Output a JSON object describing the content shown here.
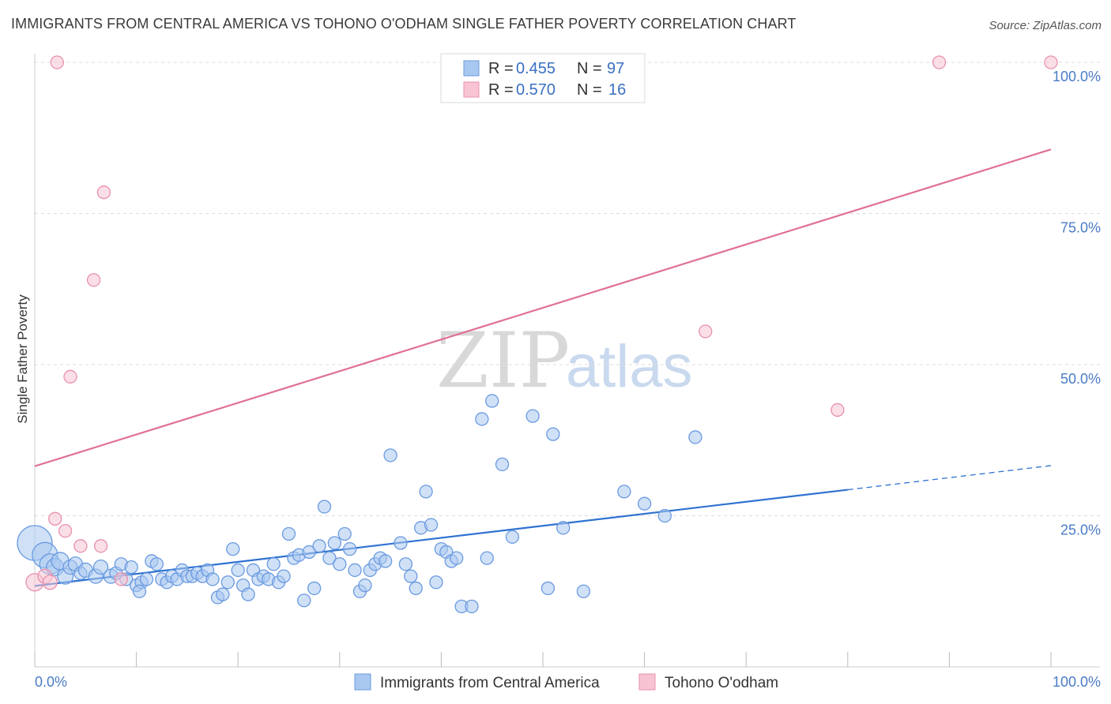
{
  "title": "IMMIGRANTS FROM CENTRAL AMERICA VS TOHONO O'ODHAM SINGLE FATHER POVERTY CORRELATION CHART",
  "source": "Source: ZipAtlas.com",
  "watermark": {
    "zip": "ZIP",
    "atlas": "atlas"
  },
  "colors": {
    "blue_fill": "#a9c8f0",
    "blue_stroke": "#6a9ae0",
    "blue_line": "#2f72d1",
    "pink_fill": "#f8c4d4",
    "pink_stroke": "#e890ad",
    "pink_line": "#e07098",
    "tick_text": "#4a7cc7",
    "grid": "#dddddd"
  },
  "legend": {
    "rows": [
      {
        "r_label": "R =",
        "r_value": "0.455",
        "n_label": "N =",
        "n_value": "97"
      },
      {
        "r_label": "R =",
        "r_value": "0.570",
        "n_label": "N =",
        "n_value": "16"
      }
    ]
  },
  "bottom_legend": [
    "Immigrants from Central America",
    "Tohono O'odham"
  ],
  "chart_data": {
    "type": "scatter",
    "title": "IMMIGRANTS FROM CENTRAL AMERICA VS TOHONO O'ODHAM SINGLE FATHER POVERTY CORRELATION CHART",
    "xlabel": "",
    "ylabel": "Single Father Poverty",
    "xlim": [
      0,
      100
    ],
    "ylim": [
      0,
      100
    ],
    "x_tick_labels": [
      "0.0%",
      "100.0%"
    ],
    "y_tick_labels": [
      "25.0%",
      "50.0%",
      "75.0%",
      "100.0%"
    ],
    "y_ticks": [
      25,
      50,
      75,
      100
    ],
    "grid": "horizontal dashed",
    "legend_position": "top-center",
    "series": [
      {
        "name": "Immigrants from Central America",
        "R": 0.455,
        "N": 97,
        "trend": {
          "x": [
            0,
            80
          ],
          "y": [
            13.4,
            29.3
          ],
          "dashed_to": [
            100,
            33.3
          ]
        },
        "points": [
          [
            0,
            20.5,
            22
          ],
          [
            1,
            18.5,
            16
          ],
          [
            1.5,
            17,
            13
          ],
          [
            2,
            16.5,
            11
          ],
          [
            2.5,
            17.5,
            11
          ],
          [
            3,
            15,
            10
          ],
          [
            3.5,
            16.5,
            9
          ],
          [
            4,
            17,
            9
          ],
          [
            4.5,
            15.5,
            8
          ],
          [
            5,
            16,
            9
          ],
          [
            6,
            15,
            9
          ],
          [
            6.5,
            16.5,
            9
          ],
          [
            7.5,
            15,
            9
          ],
          [
            8,
            15.5,
            8
          ],
          [
            8.5,
            17,
            8
          ],
          [
            9,
            14.5,
            8
          ],
          [
            9.5,
            16.5,
            8
          ],
          [
            10,
            13.5,
            8
          ],
          [
            10.5,
            14,
            8
          ],
          [
            10.3,
            12.5,
            8
          ],
          [
            11,
            14.5,
            8
          ],
          [
            11.5,
            17.5,
            8
          ],
          [
            12,
            17,
            8
          ],
          [
            12.5,
            14.5,
            8
          ],
          [
            13,
            14,
            8
          ],
          [
            13.5,
            15,
            8
          ],
          [
            14,
            14.5,
            8
          ],
          [
            14.5,
            16,
            8
          ],
          [
            15,
            15,
            8
          ],
          [
            15.5,
            15,
            8
          ],
          [
            16,
            15.5,
            8
          ],
          [
            16.5,
            15,
            8
          ],
          [
            17,
            16,
            8
          ],
          [
            17.5,
            14.5,
            8
          ],
          [
            18,
            11.5,
            8
          ],
          [
            18.5,
            12,
            8
          ],
          [
            19,
            14,
            8
          ],
          [
            19.5,
            19.5,
            8
          ],
          [
            20,
            16,
            8
          ],
          [
            20.5,
            13.5,
            8
          ],
          [
            21,
            12,
            8
          ],
          [
            21.5,
            16,
            8
          ],
          [
            22,
            14.5,
            8
          ],
          [
            22.5,
            15,
            8
          ],
          [
            23,
            14.5,
            8
          ],
          [
            23.5,
            17,
            8
          ],
          [
            24,
            14,
            8
          ],
          [
            24.5,
            15,
            8
          ],
          [
            25,
            22,
            8
          ],
          [
            25.5,
            18,
            8
          ],
          [
            26,
            18.5,
            8
          ],
          [
            26.5,
            11,
            8
          ],
          [
            27,
            19,
            8
          ],
          [
            27.5,
            13,
            8
          ],
          [
            28,
            20,
            8
          ],
          [
            28.5,
            26.5,
            8
          ],
          [
            29,
            18,
            8
          ],
          [
            29.5,
            20.5,
            8
          ],
          [
            30,
            17,
            8
          ],
          [
            30.5,
            22,
            8
          ],
          [
            31,
            19.5,
            8
          ],
          [
            31.5,
            16,
            8
          ],
          [
            32,
            12.5,
            8
          ],
          [
            32.5,
            13.5,
            8
          ],
          [
            33,
            16,
            8
          ],
          [
            33.5,
            17,
            8
          ],
          [
            34,
            18,
            8
          ],
          [
            34.5,
            17.5,
            8
          ],
          [
            35,
            35,
            8
          ],
          [
            36,
            20.5,
            8
          ],
          [
            36.5,
            17,
            8
          ],
          [
            37,
            15,
            8
          ],
          [
            37.5,
            13,
            8
          ],
          [
            38,
            23,
            8
          ],
          [
            38.5,
            29,
            8
          ],
          [
            39,
            23.5,
            8
          ],
          [
            39.5,
            14,
            8
          ],
          [
            40,
            19.5,
            8
          ],
          [
            40.5,
            19,
            8
          ],
          [
            41,
            17.5,
            8
          ],
          [
            41.5,
            18,
            8
          ],
          [
            42,
            10,
            8
          ],
          [
            43,
            10,
            8
          ],
          [
            44,
            41,
            8
          ],
          [
            44.5,
            18,
            8
          ],
          [
            45,
            44,
            8
          ],
          [
            46,
            33.5,
            8
          ],
          [
            47,
            21.5,
            8
          ],
          [
            49,
            41.5,
            8
          ],
          [
            50.5,
            13,
            8
          ],
          [
            51,
            38.5,
            8
          ],
          [
            52,
            23,
            8
          ],
          [
            54,
            12.5,
            8
          ],
          [
            65,
            38,
            8
          ],
          [
            58,
            29,
            8
          ],
          [
            60,
            27,
            8
          ],
          [
            62,
            25,
            8
          ]
        ]
      },
      {
        "name": "Tohono O'odham",
        "R": 0.57,
        "N": 16,
        "trend": {
          "x": [
            0,
            100
          ],
          "y": [
            33.2,
            85.6
          ]
        },
        "points": [
          [
            0,
            14,
            11
          ],
          [
            1,
            15,
            9
          ],
          [
            1.5,
            14,
            9
          ],
          [
            2,
            24.5,
            8
          ],
          [
            2.2,
            100,
            8
          ],
          [
            3,
            22.5,
            8
          ],
          [
            3.5,
            48,
            8
          ],
          [
            4.5,
            20,
            8
          ],
          [
            5.8,
            64,
            8
          ],
          [
            6.5,
            20,
            8
          ],
          [
            6.8,
            78.5,
            8
          ],
          [
            8.5,
            14.5,
            8
          ],
          [
            66,
            55.5,
            8
          ],
          [
            79,
            42.5,
            8
          ],
          [
            89,
            100,
            8
          ],
          [
            100,
            100,
            8
          ]
        ]
      }
    ]
  }
}
